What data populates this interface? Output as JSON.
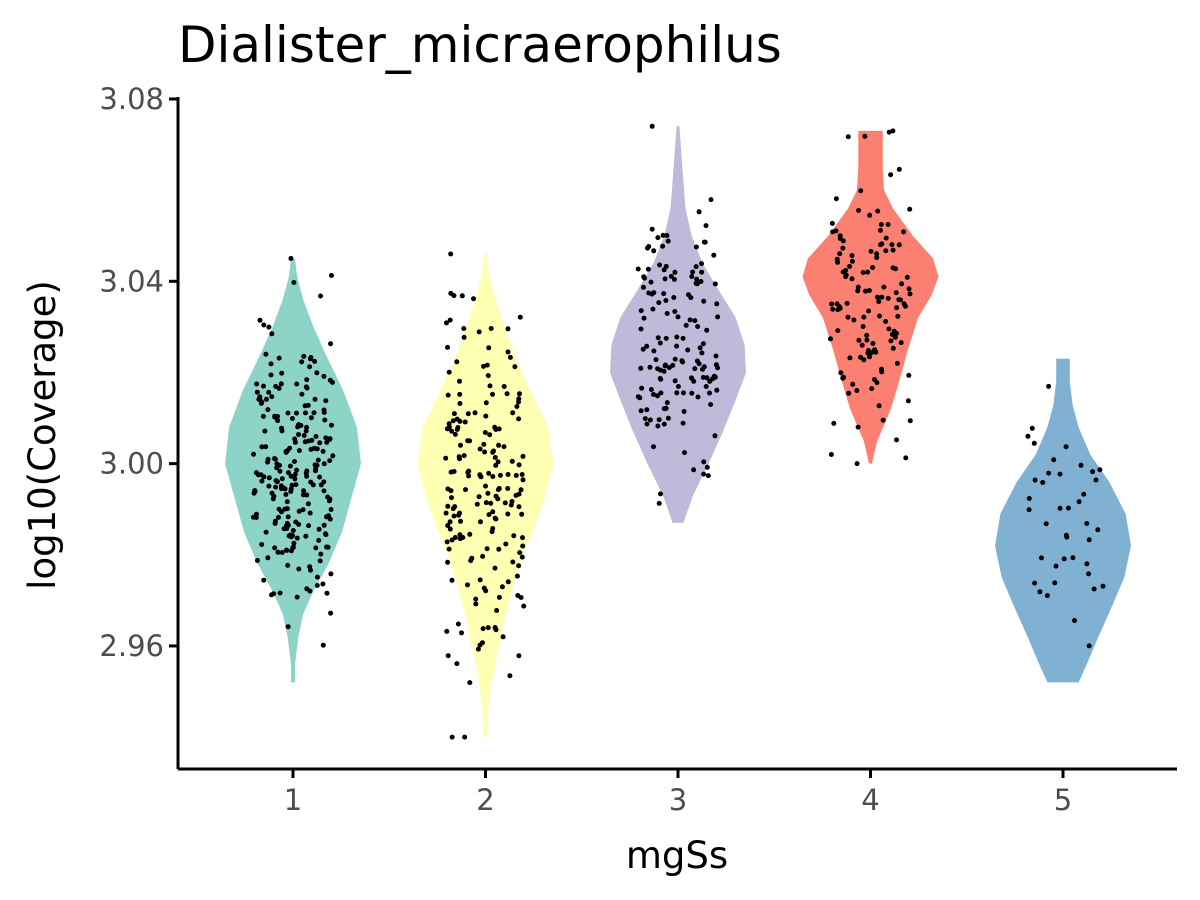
{
  "chart_data": {
    "type": "violin",
    "title": "Dialister_micraerophilus",
    "xlabel": "mgSs",
    "ylabel": "log10(Coverage)",
    "ylim": [
      2.933,
      3.08
    ],
    "yticks": [
      "3.08",
      "3.04",
      "3.00",
      "2.96"
    ],
    "grid": false,
    "legend": "none",
    "categories": [
      "1",
      "2",
      "3",
      "4",
      "5"
    ],
    "groups": [
      {
        "category": "1",
        "color": "#8DD3C7",
        "min": 2.952,
        "max": 3.045,
        "n": 240,
        "mean": 2.999,
        "sd": 0.016,
        "density": [
          [
            2.952,
            0.03
          ],
          [
            2.956,
            0.03
          ],
          [
            2.962,
            0.08
          ],
          [
            2.967,
            0.15
          ],
          [
            2.972,
            0.3
          ],
          [
            2.978,
            0.52
          ],
          [
            2.985,
            0.72
          ],
          [
            2.992,
            0.85
          ],
          [
            3.0,
            1.0
          ],
          [
            3.008,
            0.94
          ],
          [
            3.016,
            0.74
          ],
          [
            3.024,
            0.48
          ],
          [
            3.03,
            0.3
          ],
          [
            3.036,
            0.15
          ],
          [
            3.041,
            0.06
          ],
          [
            3.045,
            0.03
          ]
        ]
      },
      {
        "category": "2",
        "color": "#FFFFB3",
        "min": 2.94,
        "max": 3.046,
        "n": 190,
        "mean": 2.998,
        "sd": 0.019,
        "density": [
          [
            2.94,
            0.02
          ],
          [
            2.946,
            0.04
          ],
          [
            2.953,
            0.1
          ],
          [
            2.96,
            0.2
          ],
          [
            2.967,
            0.3
          ],
          [
            2.974,
            0.42
          ],
          [
            2.98,
            0.55
          ],
          [
            2.986,
            0.72
          ],
          [
            2.993,
            0.88
          ],
          [
            3.0,
            1.0
          ],
          [
            3.008,
            0.92
          ],
          [
            3.016,
            0.66
          ],
          [
            3.023,
            0.45
          ],
          [
            3.03,
            0.28
          ],
          [
            3.037,
            0.13
          ],
          [
            3.042,
            0.05
          ],
          [
            3.046,
            0.02
          ]
        ]
      },
      {
        "category": "3",
        "color": "#BEBADA",
        "min": 2.987,
        "max": 3.074,
        "n": 150,
        "mean": 3.024,
        "sd": 0.016,
        "density": [
          [
            2.987,
            0.08
          ],
          [
            2.993,
            0.22
          ],
          [
            3.0,
            0.45
          ],
          [
            3.007,
            0.66
          ],
          [
            3.014,
            0.85
          ],
          [
            3.02,
            1.0
          ],
          [
            3.026,
            0.98
          ],
          [
            3.032,
            0.85
          ],
          [
            3.038,
            0.6
          ],
          [
            3.044,
            0.36
          ],
          [
            3.05,
            0.2
          ],
          [
            3.056,
            0.11
          ],
          [
            3.062,
            0.08
          ],
          [
            3.068,
            0.05
          ],
          [
            3.074,
            0.02
          ]
        ]
      },
      {
        "category": "4",
        "color": "#FB8072",
        "min": 3.0,
        "max": 3.073,
        "n": 130,
        "mean": 3.036,
        "sd": 0.015,
        "density": [
          [
            3.0,
            0.02
          ],
          [
            3.005,
            0.1
          ],
          [
            3.012,
            0.3
          ],
          [
            3.018,
            0.42
          ],
          [
            3.025,
            0.55
          ],
          [
            3.032,
            0.7
          ],
          [
            3.037,
            0.9
          ],
          [
            3.041,
            1.0
          ],
          [
            3.045,
            0.92
          ],
          [
            3.05,
            0.62
          ],
          [
            3.056,
            0.33
          ],
          [
            3.06,
            0.2
          ],
          [
            3.065,
            0.18
          ],
          [
            3.07,
            0.18
          ],
          [
            3.073,
            0.18
          ]
        ]
      },
      {
        "category": "5",
        "color": "#80B1D3",
        "min": 2.952,
        "max": 3.023,
        "n": 40,
        "mean": 2.982,
        "sd": 0.013,
        "density": [
          [
            2.952,
            0.23
          ],
          [
            2.956,
            0.35
          ],
          [
            2.962,
            0.52
          ],
          [
            2.968,
            0.7
          ],
          [
            2.975,
            0.9
          ],
          [
            2.982,
            1.0
          ],
          [
            2.989,
            0.92
          ],
          [
            2.996,
            0.68
          ],
          [
            3.002,
            0.4
          ],
          [
            3.008,
            0.23
          ],
          [
            3.013,
            0.14
          ],
          [
            3.018,
            0.1
          ],
          [
            3.023,
            0.1
          ]
        ]
      }
    ]
  }
}
